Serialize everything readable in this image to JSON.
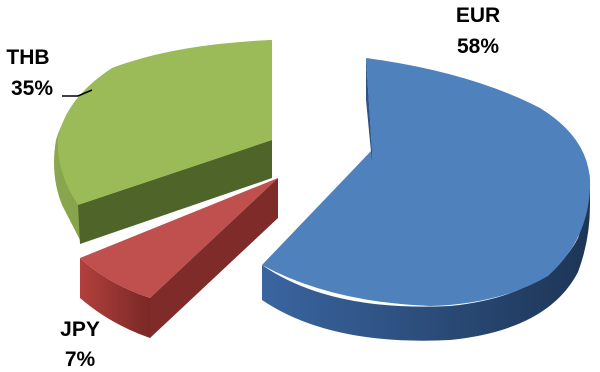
{
  "chart_data": {
    "type": "pie",
    "style": "3d-exploded",
    "title": "",
    "slices": [
      {
        "name": "EUR",
        "value": 58,
        "label": "58%",
        "color": "#4F81BD"
      },
      {
        "name": "JPY",
        "value": 7,
        "label": "7%",
        "color": "#C0504D"
      },
      {
        "name": "THB",
        "value": 35,
        "label": "35%",
        "color": "#9BBB59"
      }
    ],
    "legend": "none"
  }
}
